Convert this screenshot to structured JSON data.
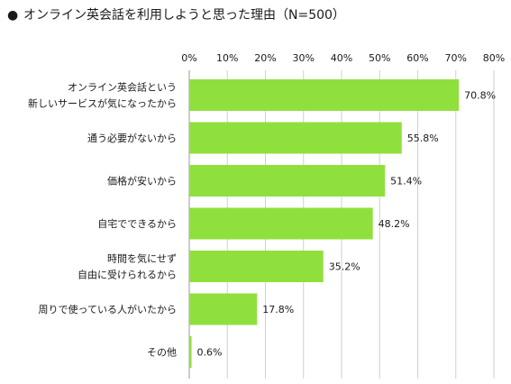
{
  "header": {
    "bullet": "●",
    "title": "オンライン英会話を利用しようと思った理由（N=500）"
  },
  "colors": {
    "bar": "#8fe03c",
    "grid": "#d0d0d0",
    "axis": "#9a9a9a"
  },
  "chart_data": {
    "type": "bar",
    "orientation": "horizontal",
    "title": "オンライン英会話を利用しようと思った理由（N=500）",
    "categories": [
      [
        "オンライン英会話という",
        "新しいサービスが気になったから"
      ],
      [
        "通う必要がないから"
      ],
      [
        "価格が安いから"
      ],
      [
        "自宅でできるから"
      ],
      [
        "時間を気にせず",
        "自由に受けられるから"
      ],
      [
        "周りで使っている人がいたから"
      ],
      [
        "その他"
      ]
    ],
    "values": [
      70.8,
      55.8,
      51.4,
      48.2,
      35.2,
      17.8,
      0.6
    ],
    "value_labels": [
      "70.8%",
      "55.8%",
      "51.4%",
      "48.2%",
      "35.2%",
      "17.8%",
      "0.6%"
    ],
    "xlim": [
      0,
      80
    ],
    "xticks": [
      "0%",
      "10%",
      "20%",
      "30%",
      "40%",
      "50%",
      "60%",
      "70%",
      "80%"
    ],
    "grid": true,
    "axis_position": "top"
  }
}
